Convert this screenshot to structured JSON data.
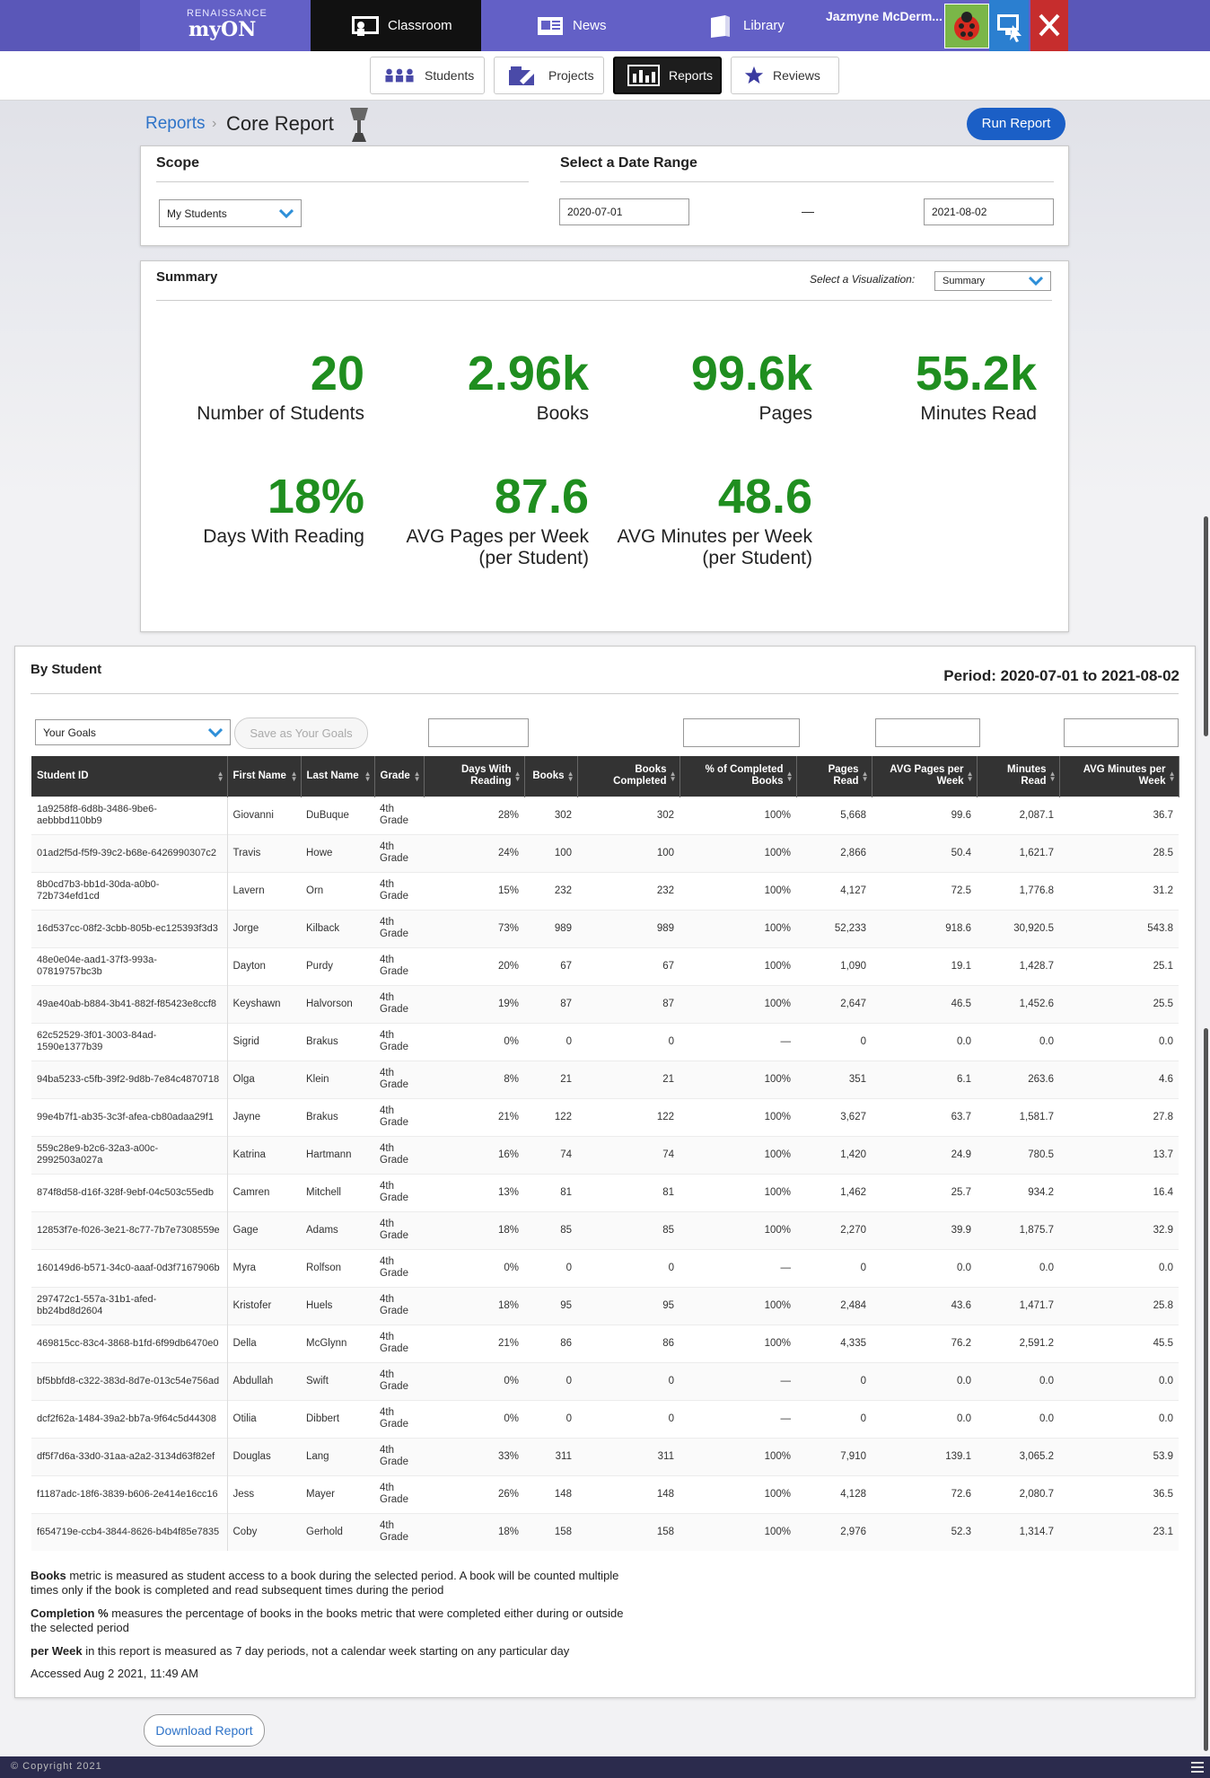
{
  "brand": {
    "small": "RENAISSANCE",
    "big": "myON"
  },
  "topnav": {
    "classroom": "Classroom",
    "news": "News",
    "library": "Library"
  },
  "user": {
    "name": "Jazmyne McDerm..."
  },
  "subnav": {
    "students": "Students",
    "projects": "Projects",
    "reports": "Reports",
    "reviews": "Reviews"
  },
  "breadcrumb": {
    "parent": "Reports",
    "current": "Core Report"
  },
  "run_report": "Run Report",
  "scope": {
    "title": "Scope",
    "selected": "My Students"
  },
  "date_range": {
    "title": "Select a Date Range",
    "from": "2020-07-01",
    "dash": "—",
    "to": "2021-08-02"
  },
  "summary": {
    "title": "Summary",
    "viz_label": "Select a Visualization:",
    "viz_selected": "Summary",
    "stats": [
      {
        "value": "20",
        "label": "Number of Students"
      },
      {
        "value": "2.96k",
        "label": "Books"
      },
      {
        "value": "99.6k",
        "label": "Pages"
      },
      {
        "value": "55.2k",
        "label": "Minutes Read"
      },
      {
        "value": "18%",
        "label": "Days With Reading"
      },
      {
        "value": "87.6",
        "label": "AVG Pages per Week",
        "label2": "(per Student)"
      },
      {
        "value": "48.6",
        "label": "AVG Minutes per Week",
        "label2": "(per Student)"
      }
    ]
  },
  "by_student": {
    "title": "By Student",
    "period": "Period: 2020-07-01 to 2021-08-02",
    "goals_selected": "Your Goals",
    "save_goals": "Save as Your Goals",
    "columns": [
      "Student ID",
      "First Name",
      "Last Name",
      "Grade",
      "Days With Reading",
      "Books",
      "Books Completed",
      "% of Completed Books",
      "Pages Read",
      "AVG Pages per Week",
      "Minutes Read",
      "AVG Minutes per Week"
    ],
    "rows": [
      [
        "1a9258f8-6d8b-3486-9be6-aebbbd110bb9",
        "Giovanni",
        "DuBuque",
        "4th Grade",
        "28%",
        "302",
        "302",
        "100%",
        "5,668",
        "99.6",
        "2,087.1",
        "36.7"
      ],
      [
        "01ad2f5d-f5f9-39c2-b68e-6426990307c2",
        "Travis",
        "Howe",
        "4th Grade",
        "24%",
        "100",
        "100",
        "100%",
        "2,866",
        "50.4",
        "1,621.7",
        "28.5"
      ],
      [
        "8b0cd7b3-bb1d-30da-a0b0-72b734efd1cd",
        "Lavern",
        "Orn",
        "4th Grade",
        "15%",
        "232",
        "232",
        "100%",
        "4,127",
        "72.5",
        "1,776.8",
        "31.2"
      ],
      [
        "16d537cc-08f2-3cbb-805b-ec125393f3d3",
        "Jorge",
        "Kilback",
        "4th Grade",
        "73%",
        "989",
        "989",
        "100%",
        "52,233",
        "918.6",
        "30,920.5",
        "543.8"
      ],
      [
        "48e0e04e-aad1-37f3-993a-07819757bc3b",
        "Dayton",
        "Purdy",
        "4th Grade",
        "20%",
        "67",
        "67",
        "100%",
        "1,090",
        "19.1",
        "1,428.7",
        "25.1"
      ],
      [
        "49ae40ab-b884-3b41-882f-f85423e8ccf8",
        "Keyshawn",
        "Halvorson",
        "4th Grade",
        "19%",
        "87",
        "87",
        "100%",
        "2,647",
        "46.5",
        "1,452.6",
        "25.5"
      ],
      [
        "62c52529-3f01-3003-84ad-1590e1377b39",
        "Sigrid",
        "Brakus",
        "4th Grade",
        "0%",
        "0",
        "0",
        "—",
        "0",
        "0.0",
        "0.0",
        "0.0"
      ],
      [
        "94ba5233-c5fb-39f2-9d8b-7e84c4870718",
        "Olga",
        "Klein",
        "4th Grade",
        "8%",
        "21",
        "21",
        "100%",
        "351",
        "6.1",
        "263.6",
        "4.6"
      ],
      [
        "99e4b7f1-ab35-3c3f-afea-cb80adaa29f1",
        "Jayne",
        "Brakus",
        "4th Grade",
        "21%",
        "122",
        "122",
        "100%",
        "3,627",
        "63.7",
        "1,581.7",
        "27.8"
      ],
      [
        "559c28e9-b2c6-32a3-a00c-2992503a027a",
        "Katrina",
        "Hartmann",
        "4th Grade",
        "16%",
        "74",
        "74",
        "100%",
        "1,420",
        "24.9",
        "780.5",
        "13.7"
      ],
      [
        "874f8d58-d16f-328f-9ebf-04c503c55edb",
        "Camren",
        "Mitchell",
        "4th Grade",
        "13%",
        "81",
        "81",
        "100%",
        "1,462",
        "25.7",
        "934.2",
        "16.4"
      ],
      [
        "12853f7e-f026-3e21-8c77-7b7e7308559e",
        "Gage",
        "Adams",
        "4th Grade",
        "18%",
        "85",
        "85",
        "100%",
        "2,270",
        "39.9",
        "1,875.7",
        "32.9"
      ],
      [
        "160149d6-b571-34c0-aaaf-0d3f7167906b",
        "Myra",
        "Rolfson",
        "4th Grade",
        "0%",
        "0",
        "0",
        "—",
        "0",
        "0.0",
        "0.0",
        "0.0"
      ],
      [
        "297472c1-557a-31b1-afed-bb24bd8d2604",
        "Kristofer",
        "Huels",
        "4th Grade",
        "18%",
        "95",
        "95",
        "100%",
        "2,484",
        "43.6",
        "1,471.7",
        "25.8"
      ],
      [
        "469815cc-83c4-3868-b1fd-6f99db6470e0",
        "Della",
        "McGlynn",
        "4th Grade",
        "21%",
        "86",
        "86",
        "100%",
        "4,335",
        "76.2",
        "2,591.2",
        "45.5"
      ],
      [
        "bf5bbfd8-c322-383d-8d7e-013c54e756ad",
        "Abdullah",
        "Swift",
        "4th Grade",
        "0%",
        "0",
        "0",
        "—",
        "0",
        "0.0",
        "0.0",
        "0.0"
      ],
      [
        "dcf2f62a-1484-39a2-bb7a-9f64c5d44308",
        "Otilia",
        "Dibbert",
        "4th Grade",
        "0%",
        "0",
        "0",
        "—",
        "0",
        "0.0",
        "0.0",
        "0.0"
      ],
      [
        "df5f7d6a-33d0-31aa-a2a2-3134d63f82ef",
        "Douglas",
        "Lang",
        "4th Grade",
        "33%",
        "311",
        "311",
        "100%",
        "7,910",
        "139.1",
        "3,065.2",
        "53.9"
      ],
      [
        "f1187adc-18f6-3839-b606-2e414e16cc16",
        "Jess",
        "Mayer",
        "4th Grade",
        "26%",
        "148",
        "148",
        "100%",
        "4,128",
        "72.6",
        "2,080.7",
        "36.5"
      ],
      [
        "f654719e-ccb4-3844-8626-b4b4f85e7835",
        "Coby",
        "Gerhold",
        "4th Grade",
        "18%",
        "158",
        "158",
        "100%",
        "2,976",
        "52.3",
        "1,314.7",
        "23.1"
      ]
    ]
  },
  "notes": {
    "books_bold": "Books",
    "books_text": " metric is measured as student access to a book during the selected period. A book will be counted multiple times only if the book is completed and read subsequent times during the period",
    "completion_bold": "Completion %",
    "completion_text": " measures the percentage of books in the books metric that were completed either during or outside the selected period",
    "week_bold": "per Week",
    "week_text": " in this report is measured as 7 day periods, not a calendar week starting on any particular day",
    "accessed": "Accessed Aug 2 2021, 11:49 AM"
  },
  "download_report": "Download Report",
  "footer": "© Copyright 2021",
  "colors": {
    "topbar": "#6360c6",
    "accent_blue": "#1b5fc6",
    "stat_green": "#1f8e1f"
  }
}
